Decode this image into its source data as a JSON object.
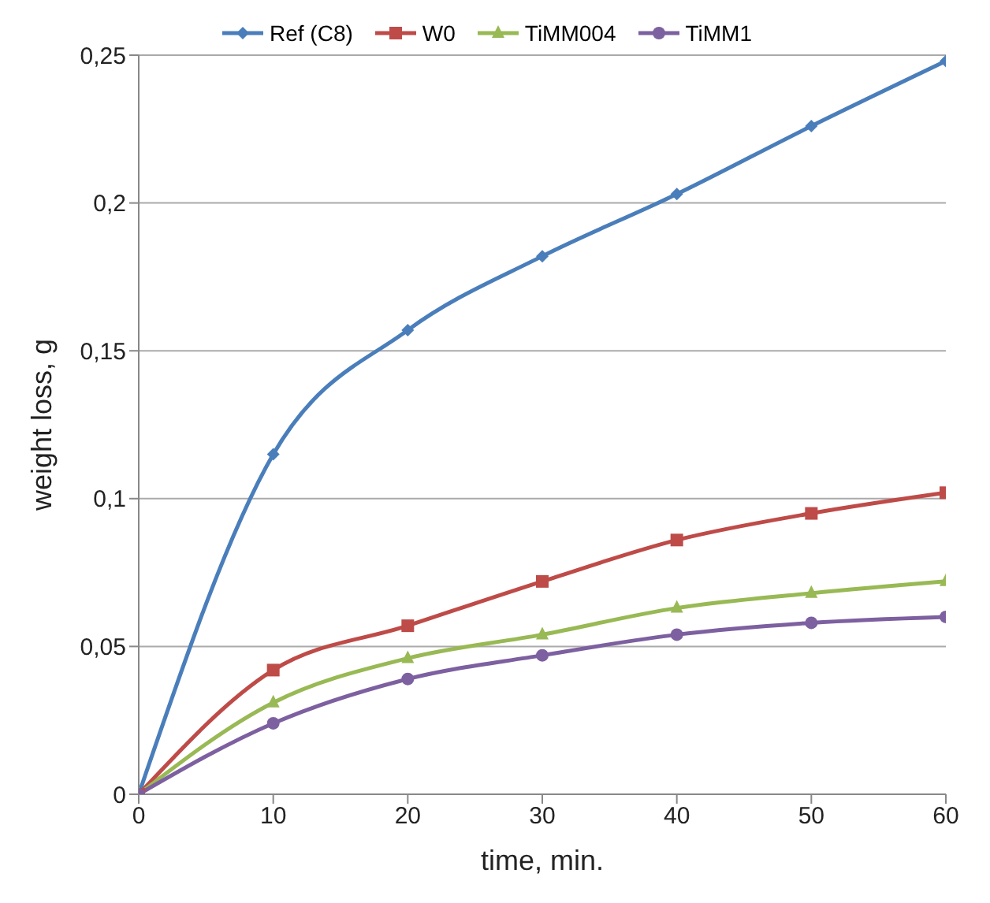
{
  "chart_data": {
    "type": "line",
    "xlabel": "time, min.",
    "ylabel": "weight loss, g",
    "x": [
      0,
      10,
      20,
      30,
      40,
      50,
      60
    ],
    "series": [
      {
        "name": "Ref (C8)",
        "color": "#4a7ebb",
        "marker": "diamond",
        "values": [
          0,
          0.115,
          0.157,
          0.182,
          0.203,
          0.226,
          0.248
        ]
      },
      {
        "name": "W0",
        "color": "#be4b48",
        "marker": "square",
        "values": [
          0,
          0.042,
          0.057,
          0.072,
          0.086,
          0.095,
          0.102
        ]
      },
      {
        "name": "TiMM004",
        "color": "#98b954",
        "marker": "triangle",
        "values": [
          0,
          0.031,
          0.046,
          0.054,
          0.063,
          0.068,
          0.072
        ]
      },
      {
        "name": "TiMM1",
        "color": "#7d60a0",
        "marker": "circle",
        "values": [
          0,
          0.024,
          0.039,
          0.047,
          0.054,
          0.058,
          0.06
        ]
      }
    ],
    "xlim": [
      0,
      60
    ],
    "xticks": [
      0,
      10,
      20,
      30,
      40,
      50,
      60
    ],
    "ylim": [
      0,
      0.25
    ],
    "yticks": [
      0,
      {
        "value": 0.05,
        "label": "0,05"
      },
      {
        "value": 0.1,
        "label": "0,1"
      },
      {
        "value": 0.15,
        "label": "0,15"
      },
      {
        "value": 0.2,
        "label": "0,2"
      },
      {
        "value": 0.25,
        "label": "0,25"
      }
    ],
    "grid": "y",
    "legend": "top",
    "line_style": "solid"
  }
}
